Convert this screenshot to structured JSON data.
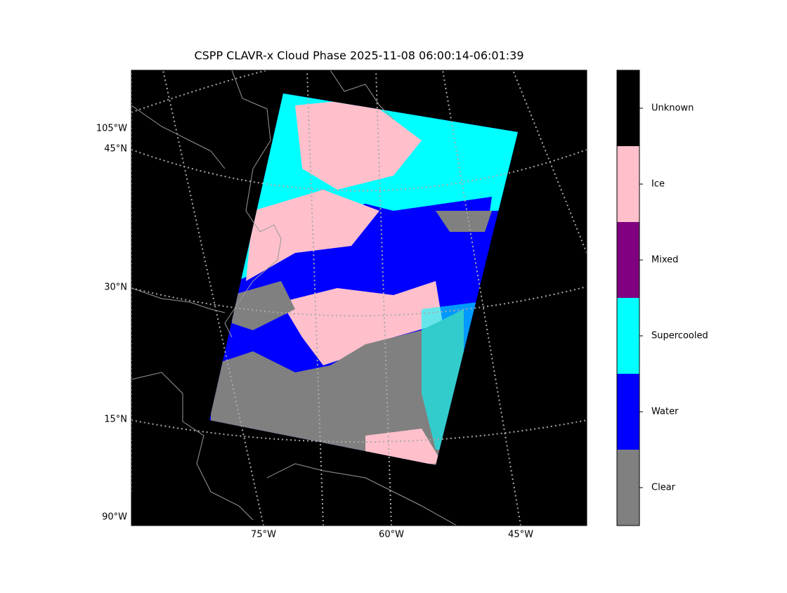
{
  "title": "CSPP CLAVR-x Cloud Phase 2025-11-08 06:00:14-06:01:39",
  "map": {
    "left_labels": [
      "105°W",
      "45°N",
      "30°N",
      "15°N",
      "90°W"
    ],
    "bottom_labels": [
      "75°W",
      "60°W",
      "45°W"
    ]
  },
  "colorbar": {
    "classes": [
      {
        "label": "Clear",
        "color": "#808080"
      },
      {
        "label": "Water",
        "color": "#0000ff"
      },
      {
        "label": "Supercooled",
        "color": "#00ffff"
      },
      {
        "label": "Mixed",
        "color": "#800080"
      },
      {
        "label": "Ice",
        "color": "#ffc0cb"
      },
      {
        "label": "Unknown",
        "color": "#000000"
      }
    ]
  }
}
